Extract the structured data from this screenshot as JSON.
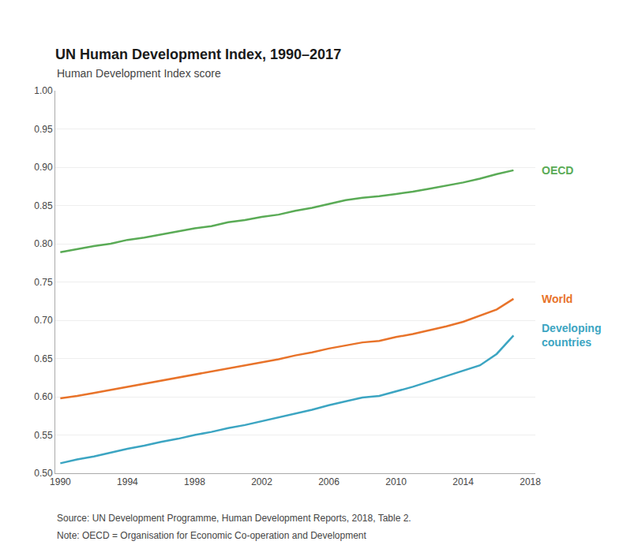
{
  "chart_data": {
    "type": "line",
    "title": "UN Human Development Index, 1990–2017",
    "subtitle": "Human Development Index score",
    "x": [
      1990,
      1991,
      1992,
      1993,
      1994,
      1995,
      1996,
      1997,
      1998,
      1999,
      2000,
      2001,
      2002,
      2003,
      2004,
      2005,
      2006,
      2007,
      2008,
      2009,
      2010,
      2011,
      2012,
      2013,
      2014,
      2015,
      2016,
      2017
    ],
    "series": [
      {
        "name": "OECD",
        "color": "#5aab56",
        "values": [
          0.789,
          0.793,
          0.797,
          0.8,
          0.805,
          0.808,
          0.812,
          0.816,
          0.82,
          0.823,
          0.828,
          0.831,
          0.835,
          0.838,
          0.843,
          0.847,
          0.852,
          0.857,
          0.86,
          0.862,
          0.865,
          0.868,
          0.872,
          0.876,
          0.88,
          0.885,
          0.891,
          0.896
        ]
      },
      {
        "name": "World",
        "color": "#e8732a",
        "values": [
          0.598,
          0.601,
          0.605,
          0.609,
          0.613,
          0.617,
          0.621,
          0.625,
          0.629,
          0.633,
          0.637,
          0.641,
          0.645,
          0.649,
          0.654,
          0.658,
          0.663,
          0.667,
          0.671,
          0.673,
          0.678,
          0.682,
          0.687,
          0.692,
          0.698,
          0.706,
          0.714,
          0.728
        ]
      },
      {
        "name": "Developing\ncountries",
        "color": "#3ca5c2",
        "values": [
          0.513,
          0.518,
          0.522,
          0.527,
          0.532,
          0.536,
          0.541,
          0.545,
          0.55,
          0.554,
          0.559,
          0.563,
          0.568,
          0.573,
          0.578,
          0.583,
          0.589,
          0.594,
          0.599,
          0.601,
          0.607,
          0.613,
          0.62,
          0.627,
          0.634,
          0.641,
          0.656,
          0.68
        ]
      }
    ],
    "xlim": [
      1989.7,
      2018.3
    ],
    "xticks": [
      1990,
      1994,
      1998,
      2002,
      2006,
      2010,
      2014,
      2018
    ],
    "ylim": [
      0.5,
      1.0
    ],
    "yticks": [
      {
        "value": 0.5,
        "label": "0.50"
      },
      0.55,
      {
        "value": 0.6,
        "label": "0.60"
      },
      0.65,
      {
        "value": 0.7,
        "label": "0.70"
      },
      0.75,
      {
        "value": 0.8,
        "label": "0.80"
      },
      0.85,
      {
        "value": 0.9,
        "label": "0.90"
      },
      0.95,
      {
        "value": 1.0,
        "label": "1.00"
      }
    ],
    "grid": "y",
    "annotations": [
      "Source: UN Development Programme, Human Development Reports, 2018, Table 2.",
      "Note: OECD = Organisation for Economic Co-operation and Development"
    ]
  }
}
